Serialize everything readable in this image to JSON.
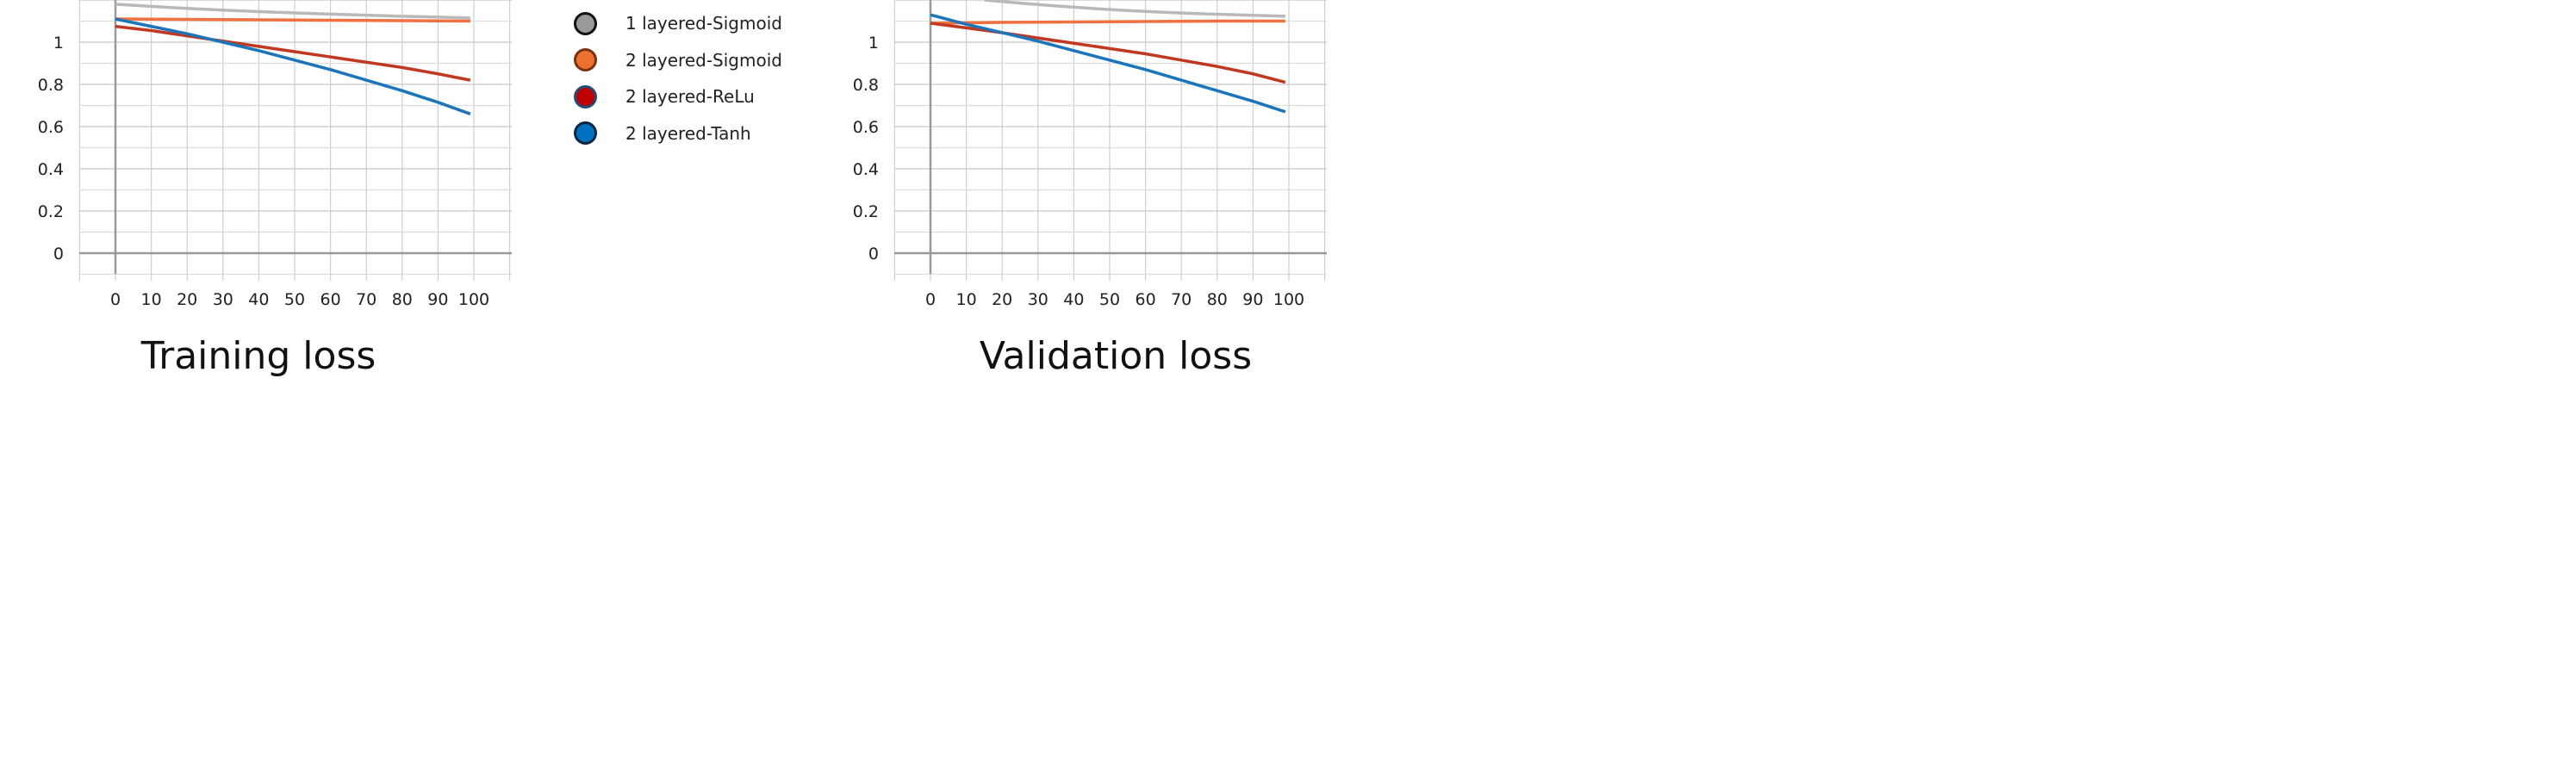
{
  "chart_data": [
    {
      "id": "training",
      "type": "line",
      "title": "Training loss",
      "xlim": [
        -10,
        110
      ],
      "ylim": [
        -0.1,
        1.2
      ],
      "xticks": [
        0,
        10,
        20,
        30,
        40,
        50,
        60,
        70,
        80,
        90,
        100
      ],
      "yticks": [
        0,
        0.2,
        0.4,
        0.6,
        0.8,
        1
      ],
      "grid": true,
      "series": [
        {
          "name": "1 layered-Sigmoid",
          "color": "#b9b9b9",
          "x": [
            0,
            10,
            20,
            30,
            40,
            50,
            60,
            70,
            80,
            90,
            99
          ],
          "y": [
            1.18,
            1.17,
            1.16,
            1.152,
            1.145,
            1.139,
            1.133,
            1.128,
            1.123,
            1.119,
            1.115
          ]
        },
        {
          "name": "2 layered-Sigmoid",
          "color": "#f07040",
          "x": [
            0,
            10,
            20,
            30,
            40,
            50,
            60,
            70,
            80,
            90,
            99
          ],
          "y": [
            1.11,
            1.109,
            1.108,
            1.107,
            1.106,
            1.105,
            1.104,
            1.103,
            1.102,
            1.101,
            1.1
          ]
        },
        {
          "name": "2 layered-ReLu",
          "color": "#c0381f",
          "x": [
            0,
            10,
            20,
            30,
            40,
            50,
            60,
            70,
            80,
            90,
            99
          ],
          "y": [
            1.075,
            1.055,
            1.03,
            1.005,
            0.98,
            0.955,
            0.93,
            0.905,
            0.88,
            0.85,
            0.82
          ]
        },
        {
          "name": "2 layered-Tanh",
          "color": "#1a75bc",
          "x": [
            0,
            10,
            20,
            30,
            40,
            50,
            60,
            70,
            80,
            90,
            99
          ],
          "y": [
            1.11,
            1.075,
            1.04,
            1.0,
            0.96,
            0.915,
            0.87,
            0.82,
            0.77,
            0.715,
            0.66
          ]
        }
      ]
    },
    {
      "id": "validation",
      "type": "line",
      "title": "Validation loss",
      "xlim": [
        -10,
        110
      ],
      "ylim": [
        -0.1,
        1.2
      ],
      "xticks": [
        0,
        10,
        20,
        30,
        40,
        50,
        60,
        70,
        80,
        90,
        100
      ],
      "yticks": [
        0,
        0.2,
        0.4,
        0.6,
        0.8,
        1
      ],
      "grid": true,
      "series": [
        {
          "name": "1 layered-Sigmoid",
          "color": "#b9b9b9",
          "x": [
            15,
            25,
            35,
            45,
            55,
            65,
            75,
            85,
            99
          ],
          "y": [
            1.2,
            1.185,
            1.172,
            1.16,
            1.15,
            1.142,
            1.135,
            1.13,
            1.123
          ]
        },
        {
          "name": "2 layered-Sigmoid",
          "color": "#f07040",
          "x": [
            0,
            10,
            20,
            30,
            40,
            50,
            60,
            70,
            80,
            90,
            99
          ],
          "y": [
            1.09,
            1.092,
            1.094,
            1.095,
            1.096,
            1.097,
            1.098,
            1.099,
            1.1,
            1.1,
            1.1
          ]
        },
        {
          "name": "2 layered-ReLu",
          "color": "#c0381f",
          "x": [
            0,
            10,
            20,
            30,
            40,
            50,
            60,
            70,
            80,
            90,
            99
          ],
          "y": [
            1.09,
            1.068,
            1.045,
            1.02,
            0.995,
            0.97,
            0.945,
            0.915,
            0.885,
            0.85,
            0.81
          ]
        },
        {
          "name": "2 layered-Tanh",
          "color": "#1a75bc",
          "x": [
            0,
            10,
            20,
            30,
            40,
            50,
            60,
            70,
            80,
            90,
            99
          ],
          "y": [
            1.13,
            1.085,
            1.045,
            1.005,
            0.96,
            0.915,
            0.87,
            0.82,
            0.77,
            0.72,
            0.67
          ]
        }
      ]
    }
  ],
  "legend": {
    "placement": "top-center",
    "items": [
      {
        "label": "1 layered-Sigmoid",
        "color": "#999999"
      },
      {
        "label": "2 layered-Sigmoid",
        "color": "#ed7031"
      },
      {
        "label": "2 layered-ReLu",
        "color": "#c00000"
      },
      {
        "label": "2 layered-Tanh",
        "color": "#0070c0"
      }
    ]
  }
}
